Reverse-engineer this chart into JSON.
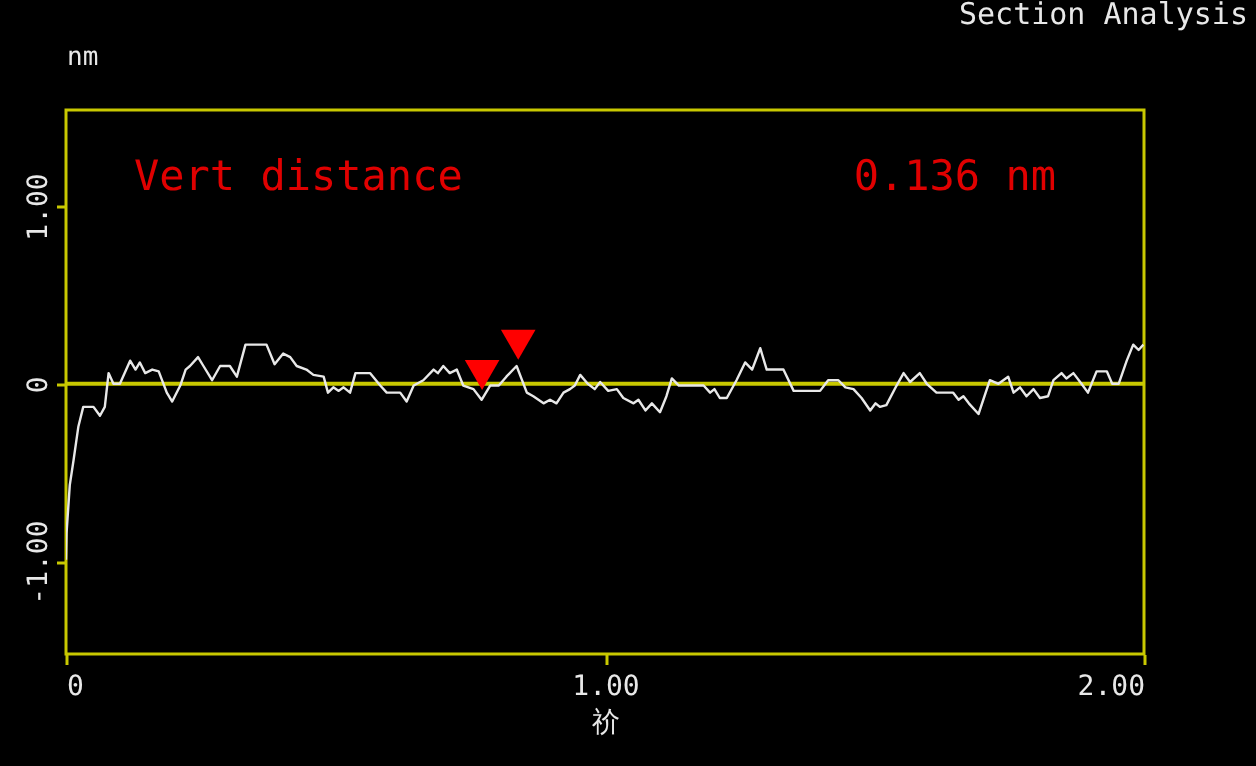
{
  "chart_data": {
    "type": "line",
    "title": "Section Analysis",
    "ylabel": "nm",
    "xlabel": "祄",
    "annotations": [
      "Vert distance",
      "0.136 nm"
    ],
    "xlim": [
      0,
      2
    ],
    "ylim": [
      -1.52,
      1.54
    ],
    "xticks": [
      0,
      {
        "value": 1,
        "label": "1.00"
      },
      {
        "value": 2,
        "label": "2.00"
      }
    ],
    "yticks": [
      {
        "value": -1,
        "label": "-1.00"
      },
      0,
      {
        "value": 1,
        "label": "1.00"
      }
    ],
    "ref_lines": [
      {
        "axis": "y",
        "value": 0,
        "color": "#c8c800"
      }
    ],
    "marker": "none",
    "series": [
      {
        "type": "line",
        "color": "#e8e8e8",
        "x": [
          0.0,
          0.001,
          0.007,
          0.014,
          0.023,
          0.032,
          0.051,
          0.063,
          0.072,
          0.079,
          0.088,
          0.1,
          0.119,
          0.129,
          0.137,
          0.147,
          0.16,
          0.172,
          0.187,
          0.197,
          0.212,
          0.222,
          0.23,
          0.245,
          0.255,
          0.271,
          0.286,
          0.304,
          0.317,
          0.333,
          0.372,
          0.387,
          0.403,
          0.416,
          0.428,
          0.446,
          0.459,
          0.478,
          0.486,
          0.496,
          0.506,
          0.515,
          0.527,
          0.537,
          0.564,
          0.583,
          0.595,
          0.62,
          0.632,
          0.645,
          0.663,
          0.682,
          0.69,
          0.7,
          0.712,
          0.725,
          0.737,
          0.756,
          0.771,
          0.787,
          0.803,
          0.817,
          0.836,
          0.855,
          0.867,
          0.886,
          0.898,
          0.91,
          0.923,
          0.935,
          0.944,
          0.954,
          0.968,
          0.981,
          0.991,
          1.006,
          1.022,
          1.034,
          1.053,
          1.062,
          1.075,
          1.087,
          1.102,
          1.114,
          1.124,
          1.137,
          1.183,
          1.195,
          1.203,
          1.213,
          1.226,
          1.244,
          1.26,
          1.273,
          1.288,
          1.3,
          1.331,
          1.35,
          1.399,
          1.414,
          1.433,
          1.446,
          1.461,
          1.476,
          1.492,
          1.502,
          1.51,
          1.522,
          1.541,
          1.554,
          1.566,
          1.584,
          1.597,
          1.615,
          1.646,
          1.656,
          1.665,
          1.675,
          1.693,
          1.714,
          1.73,
          1.748,
          1.758,
          1.77,
          1.782,
          1.795,
          1.807,
          1.822,
          1.832,
          1.847,
          1.856,
          1.869,
          1.884,
          1.896,
          1.912,
          1.931,
          1.941,
          1.953,
          1.968,
          1.98,
          1.99,
          1.999
        ],
        "values": [
          -0.99,
          -0.84,
          -0.57,
          -0.43,
          -0.24,
          -0.13,
          -0.13,
          -0.18,
          -0.13,
          0.06,
          0,
          0,
          0.13,
          0.08,
          0.12,
          0.06,
          0.08,
          0.07,
          -0.05,
          -0.1,
          -0.01,
          0.08,
          0.1,
          0.15,
          0.1,
          0.02,
          0.1,
          0.1,
          0.04,
          0.22,
          0.22,
          0.11,
          0.17,
          0.15,
          0.1,
          0.08,
          0.05,
          0.04,
          -0.05,
          -0.02,
          -0.04,
          -0.02,
          -0.05,
          0.06,
          0.06,
          -0.01,
          -0.05,
          -0.05,
          -0.1,
          -0.01,
          0.02,
          0.08,
          0.06,
          0.1,
          0.06,
          0.08,
          -0.01,
          -0.03,
          -0.09,
          -0.01,
          -0.01,
          0.04,
          0.1,
          -0.05,
          -0.07,
          -0.11,
          -0.09,
          -0.11,
          -0.05,
          -0.03,
          -0.01,
          0.05,
          0,
          -0.03,
          0.01,
          -0.04,
          -0.03,
          -0.08,
          -0.11,
          -0.09,
          -0.15,
          -0.11,
          -0.16,
          -0.07,
          0.03,
          -0.01,
          -0.01,
          -0.05,
          -0.03,
          -0.08,
          -0.08,
          0.02,
          0.12,
          0.08,
          0.2,
          0.08,
          0.08,
          -0.04,
          -0.04,
          0.02,
          0.02,
          -0.02,
          -0.03,
          -0.08,
          -0.15,
          -0.11,
          -0.13,
          -0.12,
          -0.01,
          0.06,
          0.01,
          0.06,
          0,
          -0.05,
          -0.05,
          -0.09,
          -0.07,
          -0.11,
          -0.17,
          0.02,
          0,
          0.04,
          -0.05,
          -0.02,
          -0.07,
          -0.03,
          -0.08,
          -0.07,
          0.02,
          0.06,
          0.03,
          0.06,
          0,
          -0.05,
          0.07,
          0.07,
          0,
          0,
          0.13,
          0.22,
          0.19,
          0.22
        ]
      },
      {
        "type": "scatter",
        "color": "#ff0000",
        "marker": "triangle",
        "x": [
          0.772,
          0.839
        ],
        "values": [
          0.05,
          0.22
        ]
      }
    ]
  }
}
